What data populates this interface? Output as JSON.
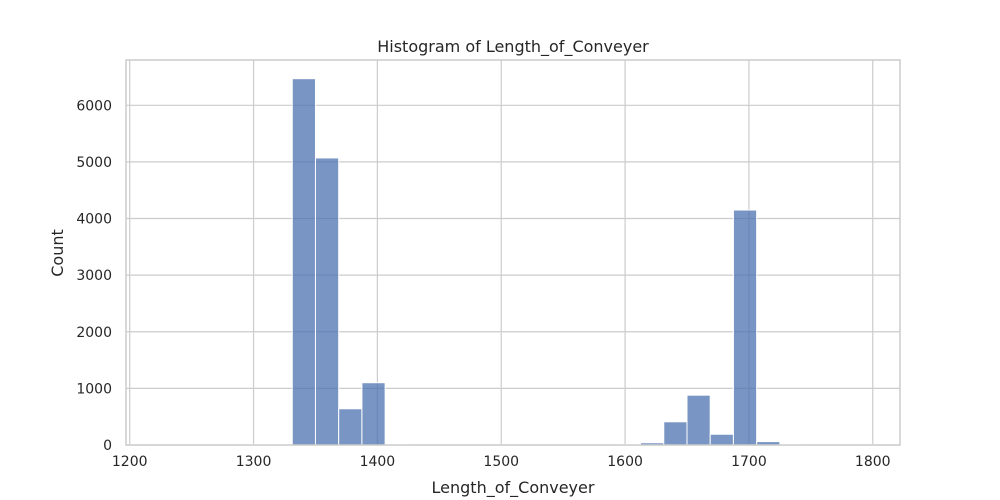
{
  "chart_data": {
    "type": "bar",
    "title": "Histogram of Length_of_Conveyer",
    "xlabel": "Length_of_Conveyer",
    "ylabel": "Count",
    "xlim": [
      1197,
      1822
    ],
    "ylim": [
      0,
      6800
    ],
    "xticks": [
      1200,
      1300,
      1400,
      1500,
      1600,
      1700,
      1800
    ],
    "yticks": [
      0,
      1000,
      2000,
      3000,
      4000,
      5000,
      6000
    ],
    "grid": true,
    "bar_color": "#4c72b0",
    "bins": [
      {
        "x0": 1200,
        "x1": 1218.75,
        "count": 5
      },
      {
        "x0": 1218.75,
        "x1": 1237.5,
        "count": 5
      },
      {
        "x0": 1237.5,
        "x1": 1256.25,
        "count": 5
      },
      {
        "x0": 1256.25,
        "x1": 1275,
        "count": 5
      },
      {
        "x0": 1275,
        "x1": 1293.75,
        "count": 5
      },
      {
        "x0": 1293.75,
        "x1": 1312.5,
        "count": 10
      },
      {
        "x0": 1312.5,
        "x1": 1331.25,
        "count": 10
      },
      {
        "x0": 1331.25,
        "x1": 1350,
        "count": 6470
      },
      {
        "x0": 1350,
        "x1": 1368.75,
        "count": 5070
      },
      {
        "x0": 1368.75,
        "x1": 1387.5,
        "count": 640
      },
      {
        "x0": 1387.5,
        "x1": 1406.25,
        "count": 1100
      },
      {
        "x0": 1406.25,
        "x1": 1425,
        "count": 10
      },
      {
        "x0": 1425,
        "x1": 1443.75,
        "count": 5
      },
      {
        "x0": 1443.75,
        "x1": 1462.5,
        "count": 5
      },
      {
        "x0": 1462.5,
        "x1": 1481.25,
        "count": 5
      },
      {
        "x0": 1481.25,
        "x1": 1500,
        "count": 5
      },
      {
        "x0": 1500,
        "x1": 1518.75,
        "count": 5
      },
      {
        "x0": 1518.75,
        "x1": 1537.5,
        "count": 5
      },
      {
        "x0": 1537.5,
        "x1": 1556.25,
        "count": 5
      },
      {
        "x0": 1556.25,
        "x1": 1575,
        "count": 5
      },
      {
        "x0": 1575,
        "x1": 1593.75,
        "count": 5
      },
      {
        "x0": 1593.75,
        "x1": 1612.5,
        "count": 10
      },
      {
        "x0": 1612.5,
        "x1": 1631.25,
        "count": 40
      },
      {
        "x0": 1631.25,
        "x1": 1650,
        "count": 410
      },
      {
        "x0": 1650,
        "x1": 1668.75,
        "count": 880
      },
      {
        "x0": 1668.75,
        "x1": 1687.5,
        "count": 190
      },
      {
        "x0": 1687.5,
        "x1": 1706.25,
        "count": 4150
      },
      {
        "x0": 1706.25,
        "x1": 1725,
        "count": 60
      },
      {
        "x0": 1725,
        "x1": 1743.75,
        "count": 10
      },
      {
        "x0": 1743.75,
        "x1": 1762.5,
        "count": 5
      },
      {
        "x0": 1762.5,
        "x1": 1781.25,
        "count": 5
      },
      {
        "x0": 1781.25,
        "x1": 1800,
        "count": 5
      }
    ]
  }
}
